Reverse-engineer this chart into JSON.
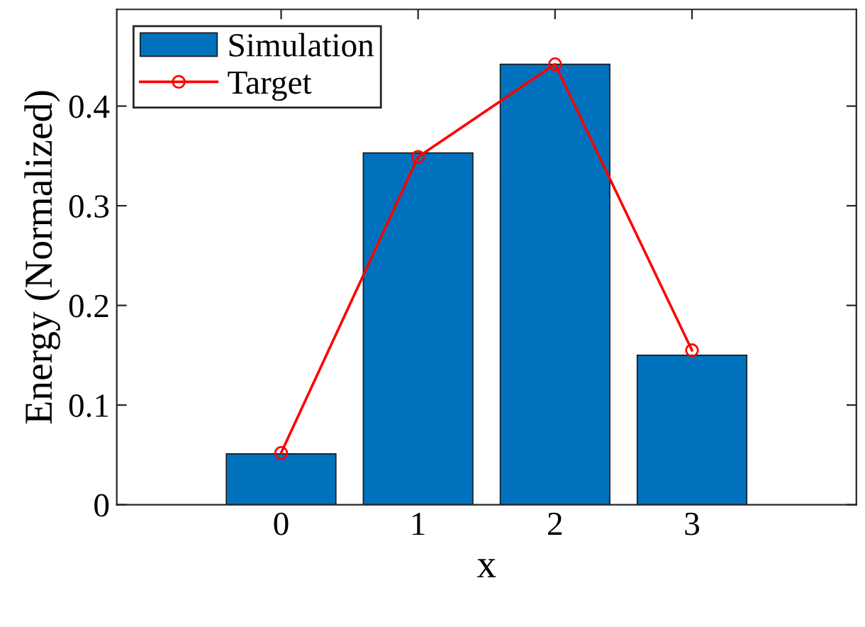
{
  "chart_data": {
    "type": "bar",
    "xlabel": "x",
    "ylabel": "Energy (Normalized)",
    "x": [
      0,
      1,
      2,
      3
    ],
    "series": [
      {
        "name": "Simulation",
        "color": "#0072bd",
        "values": [
          0.051,
          0.353,
          0.442,
          0.15
        ]
      },
      {
        "name": "Target",
        "type": "line",
        "color": "#ff0000",
        "marker": "circle",
        "values": [
          0.052,
          0.349,
          0.442,
          0.155
        ]
      }
    ],
    "xlim": [
      -1.2,
      4.2
    ],
    "xticks": [
      0,
      1,
      2,
      3
    ],
    "ylim": [
      0,
      0.497
    ],
    "yticks": [
      0,
      0.1,
      0.2,
      0.3,
      0.4
    ],
    "grid": false,
    "legend": "top left"
  }
}
